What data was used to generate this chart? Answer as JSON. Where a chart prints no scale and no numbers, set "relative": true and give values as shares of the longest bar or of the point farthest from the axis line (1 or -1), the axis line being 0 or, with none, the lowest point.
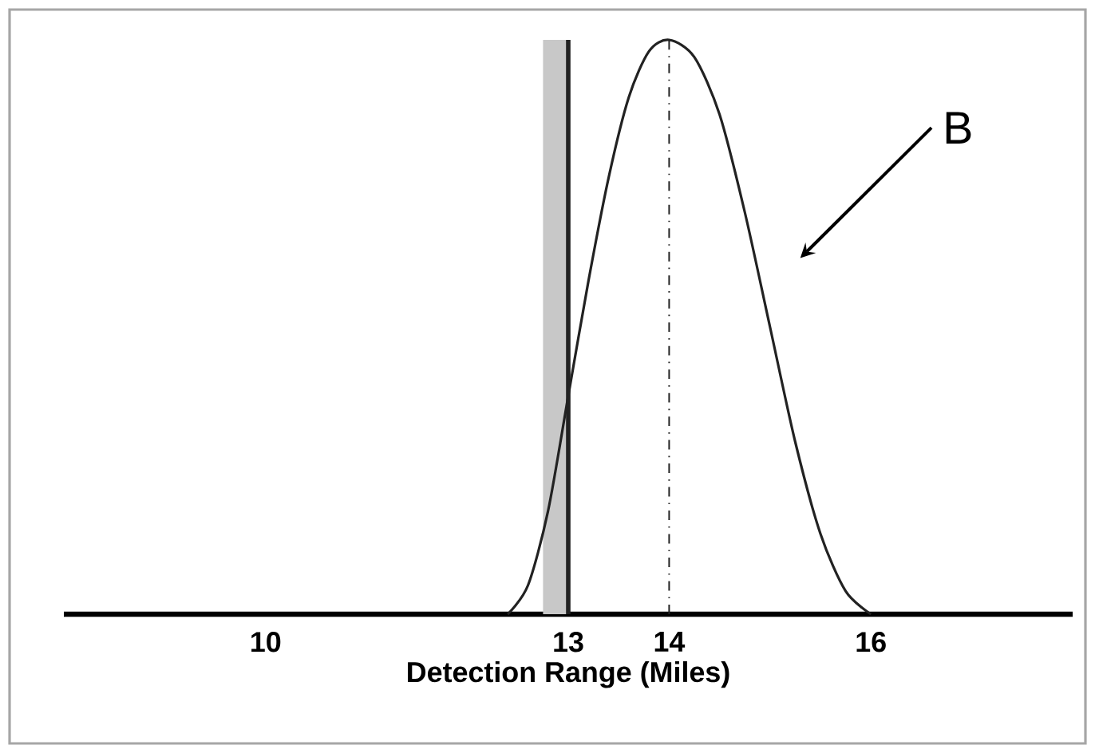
{
  "chart_data": {
    "type": "line",
    "relative": true,
    "xlabel": "Detection Range (Miles)",
    "xlim": [
      8,
      18
    ],
    "xticks": [
      10,
      13,
      14,
      16
    ],
    "series": [
      {
        "color": "#222222",
        "x": [
          12.4,
          12.6,
          12.8,
          13.0,
          13.2,
          13.4,
          13.6,
          13.8,
          14.0,
          14.25,
          14.5,
          14.75,
          15.0,
          15.25,
          15.5,
          15.75,
          16.0
        ],
        "values": [
          0,
          0.05,
          0.18,
          0.38,
          0.58,
          0.76,
          0.9,
          0.98,
          1,
          0.97,
          0.87,
          0.7,
          0.5,
          0.3,
          0.14,
          0.04,
          0
        ]
      }
    ],
    "ref_lines": [
      {
        "axis": "x",
        "value": 13,
        "line_style": "solid",
        "color": "#222222"
      },
      {
        "axis": "x",
        "value": 14,
        "line_style": "dashed",
        "color": "#222222"
      }
    ],
    "bands": [
      {
        "axis": "x",
        "from": 12.75,
        "to": 13,
        "color": "#c8c8c8"
      }
    ],
    "annotations": [
      "B"
    ],
    "grid": false,
    "marker": "none",
    "line_style": "solid"
  }
}
